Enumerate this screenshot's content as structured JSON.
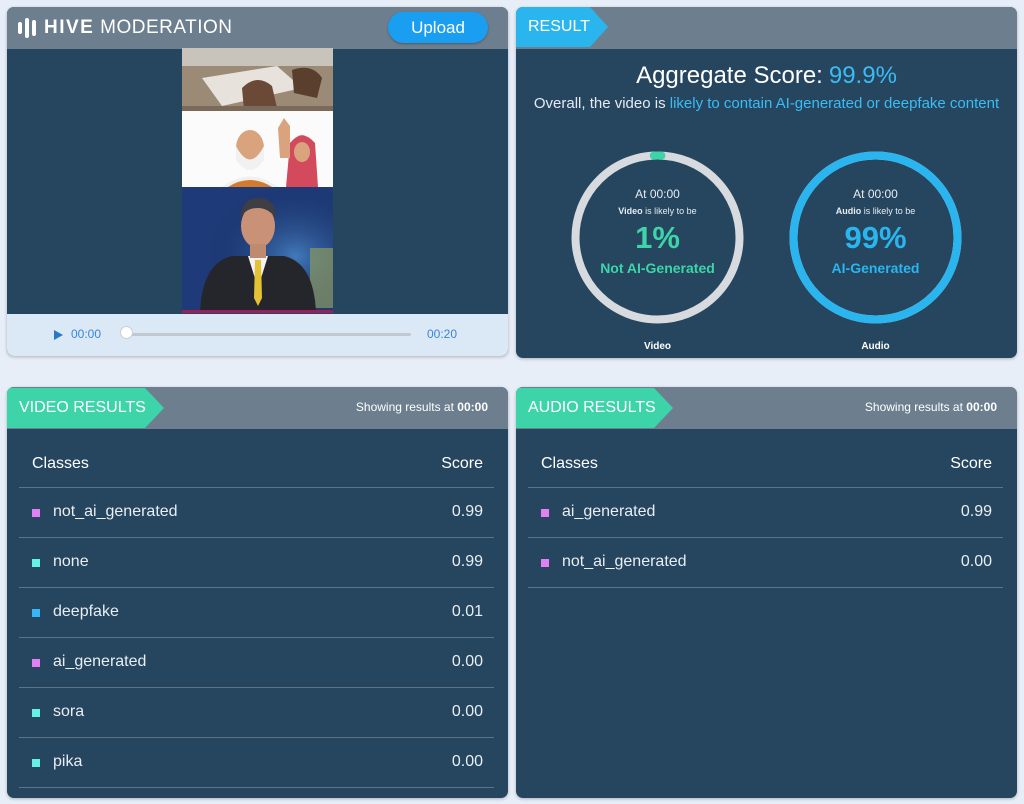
{
  "app": {
    "logo_brand": "HIVE",
    "logo_product": "MODERATION",
    "upload_label": "Upload"
  },
  "player": {
    "current_time": "00:00",
    "total_time": "00:20",
    "progress": 0
  },
  "result": {
    "tab_label": "RESULT",
    "aggregate_label": "Aggregate Score:",
    "aggregate_value": "99.9%",
    "overall_prefix": "Overall, the video is",
    "overall_highlight": "likely to contain AI-generated or deepfake content",
    "gauges": [
      {
        "at": "At 00:00",
        "subject": "Video",
        "likely": "is likely to be",
        "percent": "1%",
        "fraction": 0.01,
        "verdict": "Not AI-Generated",
        "caption": "Video",
        "color": "#3dd4a9"
      },
      {
        "at": "At 00:00",
        "subject": "Audio",
        "likely": "is likely to be",
        "percent": "99%",
        "fraction": 0.99,
        "verdict": "AI-Generated",
        "caption": "Audio",
        "color": "#2bb5ef"
      }
    ]
  },
  "video_results": {
    "tab_label": "VIDEO RESULTS",
    "showing_prefix": "Showing results at",
    "showing_time": "00:00",
    "col_classes": "Classes",
    "col_score": "Score",
    "rows": [
      {
        "name": "not_ai_generated",
        "score": "0.99",
        "color": "#e27ff2"
      },
      {
        "name": "none",
        "score": "0.99",
        "color": "#63f2e3"
      },
      {
        "name": "deepfake",
        "score": "0.01",
        "color": "#36b6f4"
      },
      {
        "name": "ai_generated",
        "score": "0.00",
        "color": "#e27ff2"
      },
      {
        "name": "sora",
        "score": "0.00",
        "color": "#63f2e3"
      },
      {
        "name": "pika",
        "score": "0.00",
        "color": "#63f2e3"
      }
    ]
  },
  "audio_results": {
    "tab_label": "AUDIO RESULTS",
    "showing_prefix": "Showing results at",
    "showing_time": "00:00",
    "col_classes": "Classes",
    "col_score": "Score",
    "rows": [
      {
        "name": "ai_generated",
        "score": "0.99",
        "color": "#e27ff2"
      },
      {
        "name": "not_ai_generated",
        "score": "0.00",
        "color": "#e27ff2"
      }
    ]
  },
  "colors": {
    "panel": "#26465f",
    "header": "#6d7f8f",
    "accent_blue": "#2bb5ef",
    "accent_green": "#3dd4a9",
    "gauge_track": "#d7dade"
  }
}
